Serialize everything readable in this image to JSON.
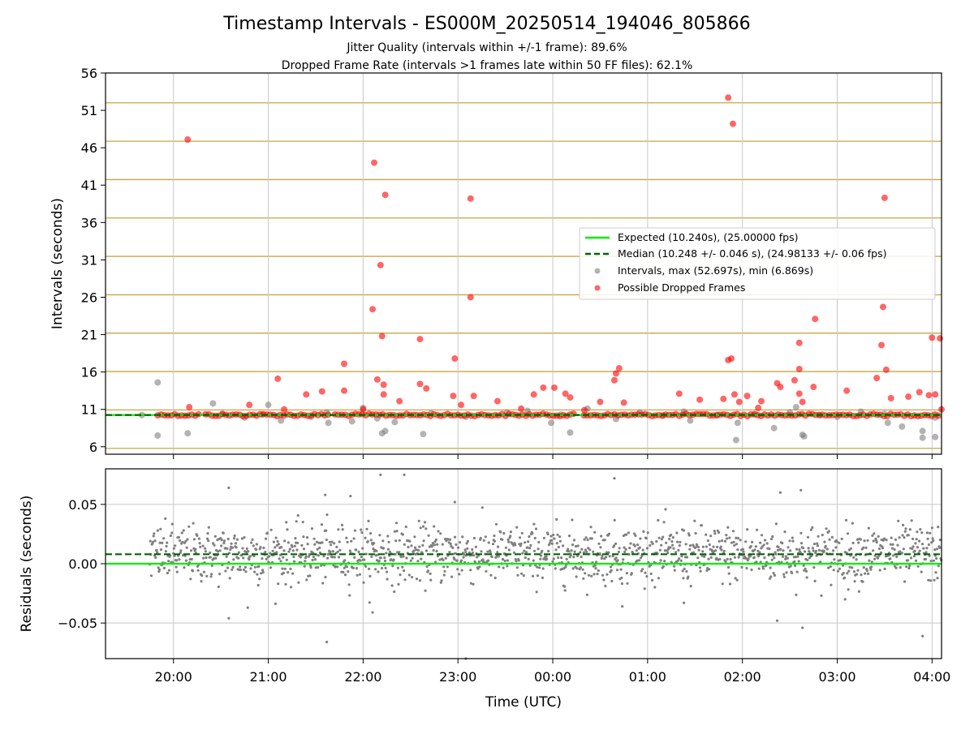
{
  "title": "Timestamp Intervals - ES000M_20250514_194046_805866",
  "subtitle_lines": [
    "Jitter Quality (intervals within +/-1 frame): 89.6%",
    "Dropped Frame Rate (intervals >1 frames late within 50 FF files): 62.1%"
  ],
  "colors": {
    "expected": "#00ee00",
    "median": "#006400",
    "intervals": "#808080",
    "dropped": "#ff0000",
    "frame_lines": "#c8a642",
    "grid": "#c8c8c8"
  },
  "chart_data": [
    {
      "type": "scatter",
      "panel": "intervals",
      "ylabel": "Intervals (seconds)",
      "xlabel": "",
      "ylim": [
        5,
        56
      ],
      "xlim": [
        "19:17",
        "04:06"
      ],
      "yticks": [
        "6",
        "11",
        "16",
        "21",
        "26",
        "31",
        "36",
        "41",
        "46",
        "51",
        "56"
      ],
      "xticks": [
        "20:00",
        "21:00",
        "22:00",
        "23:00",
        "00:00",
        "01:00",
        "02:00",
        "03:00",
        "04:00"
      ],
      "grid": true,
      "frame_lines": [
        5.79,
        10.93,
        16.06,
        21.2,
        26.33,
        31.47,
        36.6,
        41.74,
        46.87,
        52.01
      ],
      "legend_position": "center-right",
      "series": [
        {
          "name": "Expected (10.240s), (25.00000 fps)",
          "kind": "hline",
          "y": 10.24
        },
        {
          "name": "Median (10.248 +/- 0.046 s), (24.98133 +/- 0.06 fps)",
          "kind": "hline-dashed",
          "y": 10.248
        },
        {
          "name": "Intervals, max (52.697s), min (6.869s)",
          "kind": "scatter",
          "points": [
            [
              "19:40",
              10.25
            ],
            [
              "19:50",
              14.6
            ],
            [
              "19:50",
              7.5
            ],
            [
              "20:09",
              7.8
            ],
            [
              "20:25",
              11.8
            ],
            [
              "20:31",
              10.4
            ],
            [
              "20:45",
              9.9
            ],
            [
              "20:56",
              10.3
            ],
            [
              "21:00",
              11.6
            ],
            [
              "21:08",
              9.5
            ],
            [
              "21:27",
              10.0
            ],
            [
              "21:37",
              10.6
            ],
            [
              "21:38",
              9.2
            ],
            [
              "21:53",
              9.4
            ],
            [
              "22:00",
              11.2
            ],
            [
              "22:09",
              9.8
            ],
            [
              "22:12",
              7.8
            ],
            [
              "22:14",
              8.1
            ],
            [
              "22:20",
              9.3
            ],
            [
              "22:38",
              7.7
            ],
            [
              "22:43",
              10.5
            ],
            [
              "23:05",
              10.0
            ],
            [
              "23:31",
              10.6
            ],
            [
              "23:44",
              10.8
            ],
            [
              "23:59",
              9.2
            ],
            [
              "00:05",
              10.3
            ],
            [
              "00:11",
              7.9
            ],
            [
              "00:22",
              11.1
            ],
            [
              "00:40",
              9.7
            ],
            [
              "00:55",
              10.6
            ],
            [
              "01:10",
              10.2
            ],
            [
              "01:23",
              10.7
            ],
            [
              "01:27",
              9.5
            ],
            [
              "01:44",
              10.3
            ],
            [
              "01:57",
              9.2
            ],
            [
              "01:56",
              6.9
            ],
            [
              "02:08",
              10.4
            ],
            [
              "02:20",
              8.5
            ],
            [
              "02:30",
              10.6
            ],
            [
              "02:34",
              11.3
            ],
            [
              "02:38",
              7.6
            ],
            [
              "02:39",
              7.4
            ],
            [
              "02:49",
              10.2
            ],
            [
              "03:00",
              10.0
            ],
            [
              "03:15",
              10.7
            ],
            [
              "03:30",
              10.4
            ],
            [
              "03:32",
              9.2
            ],
            [
              "03:41",
              8.7
            ],
            [
              "03:54",
              8.1
            ],
            [
              "03:54",
              7.2
            ],
            [
              "04:02",
              7.3
            ],
            [
              "04:02",
              9.9
            ]
          ]
        },
        {
          "name": "Possible Dropped Frames",
          "kind": "scatter",
          "points": [
            [
              "20:09",
              47.1
            ],
            [
              "22:07",
              44.0
            ],
            [
              "22:14",
              39.7
            ],
            [
              "23:08",
              39.2
            ],
            [
              "22:11",
              30.3
            ],
            [
              "23:08",
              26.0
            ],
            [
              "22:06",
              24.4
            ],
            [
              "22:12",
              20.8
            ],
            [
              "22:36",
              20.4
            ],
            [
              "22:58",
              17.8
            ],
            [
              "21:48",
              17.1
            ],
            [
              "01:51",
              52.7
            ],
            [
              "01:54",
              49.2
            ],
            [
              "01:53",
              17.8
            ],
            [
              "01:51",
              17.6
            ],
            [
              "02:46",
              23.1
            ],
            [
              "02:36",
              19.9
            ],
            [
              "03:30",
              39.3
            ],
            [
              "03:29",
              24.7
            ],
            [
              "03:28",
              19.6
            ],
            [
              "03:31",
              16.3
            ],
            [
              "04:00",
              20.6
            ],
            [
              "04:05",
              20.5
            ],
            [
              "21:06",
              15.1
            ],
            [
              "21:34",
              13.4
            ],
            [
              "22:09",
              15.0
            ],
            [
              "22:13",
              14.3
            ],
            [
              "22:36",
              14.4
            ],
            [
              "00:40",
              15.8
            ],
            [
              "00:42",
              16.5
            ],
            [
              "00:39",
              14.9
            ],
            [
              "02:36",
              16.4
            ],
            [
              "02:33",
              14.9
            ],
            [
              "02:22",
              14.5
            ],
            [
              "03:25",
              15.2
            ],
            [
              "20:10",
              11.3
            ],
            [
              "20:48",
              11.6
            ],
            [
              "21:10",
              11.0
            ],
            [
              "21:24",
              13.0
            ],
            [
              "21:48",
              13.5
            ],
            [
              "22:00",
              11.0
            ],
            [
              "22:13",
              13.0
            ],
            [
              "22:23",
              12.1
            ],
            [
              "22:40",
              13.8
            ],
            [
              "22:57",
              12.8
            ],
            [
              "23:02",
              11.6
            ],
            [
              "23:10",
              12.8
            ],
            [
              "23:25",
              12.1
            ],
            [
              "23:48",
              13.0
            ],
            [
              "23:54",
              13.9
            ],
            [
              "00:01",
              13.9
            ],
            [
              "00:08",
              13.1
            ],
            [
              "00:11",
              12.6
            ],
            [
              "00:30",
              12.0
            ],
            [
              "00:45",
              11.9
            ],
            [
              "01:20",
              13.1
            ],
            [
              "01:33",
              12.3
            ],
            [
              "01:48",
              12.4
            ],
            [
              "02:03",
              12.8
            ],
            [
              "02:12",
              12.1
            ],
            [
              "02:24",
              14.0
            ],
            [
              "02:36",
              13.1
            ],
            [
              "02:45",
              14.0
            ],
            [
              "03:06",
              13.5
            ],
            [
              "03:34",
              12.5
            ],
            [
              "03:45",
              12.7
            ],
            [
              "03:52",
              13.3
            ],
            [
              "03:58",
              12.9
            ],
            [
              "04:02",
              13.0
            ],
            [
              "04:06",
              11.0
            ],
            [
              "01:55",
              13.0
            ],
            [
              "01:58",
              12.0
            ],
            [
              "02:10",
              11.2
            ],
            [
              "02:38",
              12.0
            ],
            [
              "00:20",
              10.9
            ],
            [
              "23:40",
              11.1
            ]
          ],
          "dense_band": {
            "from": "19:50",
            "to": "04:06",
            "y": 10.25
          }
        }
      ]
    },
    {
      "type": "scatter",
      "panel": "residuals",
      "ylabel": "Residuals (seconds)",
      "xlabel": "Time (UTC)",
      "ylim": [
        -0.08,
        0.08
      ],
      "yticks": [
        "−0.05",
        "0.00",
        "0.05"
      ],
      "xticks": [
        "20:00",
        "21:00",
        "22:00",
        "23:00",
        "00:00",
        "01:00",
        "02:00",
        "03:00",
        "04:00"
      ],
      "grid": true,
      "series": [
        {
          "name": "Expected",
          "kind": "hline",
          "y": 0.0
        },
        {
          "name": "Median",
          "kind": "hline-dashed",
          "y": 0.008
        },
        {
          "name": "Residuals",
          "kind": "scatter",
          "center": 0.008,
          "spread": 0.018,
          "points": [
            [
              "20:35",
              0.064
            ],
            [
              "21:52",
              0.057
            ],
            [
              "22:11",
              0.075
            ],
            [
              "22:26",
              0.075
            ],
            [
              "22:58",
              0.052
            ],
            [
              "00:39",
              0.072
            ],
            [
              "02:24",
              0.06
            ],
            [
              "02:37",
              0.062
            ],
            [
              "21:36",
              0.058
            ],
            [
              "20:35",
              -0.046
            ],
            [
              "20:47",
              -0.037
            ],
            [
              "21:37",
              -0.066
            ],
            [
              "22:06",
              -0.041
            ],
            [
              "23:05",
              -0.08
            ],
            [
              "02:22",
              -0.048
            ],
            [
              "02:38",
              -0.054
            ],
            [
              "03:54",
              -0.061
            ],
            [
              "01:23",
              -0.033
            ],
            [
              "00:44",
              -0.036
            ],
            [
              "03:05",
              -0.03
            ]
          ]
        }
      ]
    }
  ]
}
